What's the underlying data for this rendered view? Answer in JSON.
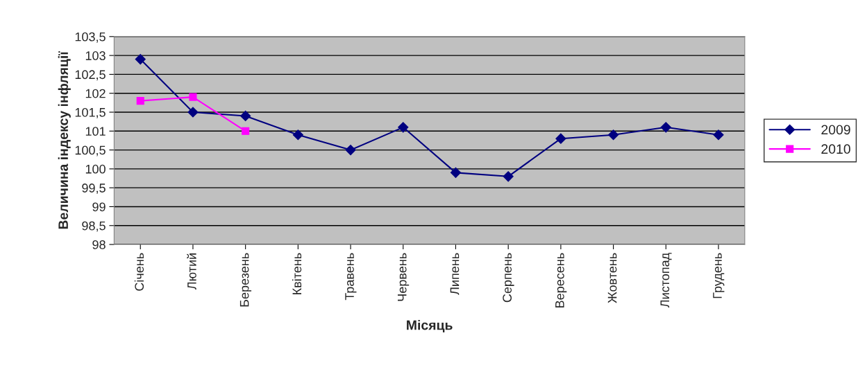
{
  "chart_data": {
    "type": "line",
    "xlabel": "Місяць",
    "ylabel": "Величина індексу інфляції",
    "categories": [
      "Січень",
      "Лютий",
      "Березень",
      "Квітень",
      "Травень",
      "Червень",
      "Липень",
      "Серпень",
      "Вересень",
      "Жовтень",
      "Листопад",
      "Грудень"
    ],
    "series": [
      {
        "name": "2009",
        "color": "#000080",
        "marker": "diamond",
        "values": [
          102.9,
          101.5,
          101.4,
          100.9,
          100.5,
          101.1,
          99.9,
          99.8,
          100.8,
          100.9,
          101.1,
          100.9
        ]
      },
      {
        "name": "2010",
        "color": "#ff00ff",
        "marker": "square",
        "values": [
          101.8,
          101.9,
          101.0,
          null,
          null,
          null,
          null,
          null,
          null,
          null,
          null,
          null
        ]
      }
    ],
    "ylim": [
      98,
      103.5
    ],
    "yticks": [
      98,
      {
        "value": 98.5,
        "label": "98,5"
      },
      99,
      {
        "value": 99.5,
        "label": "99,5"
      },
      100,
      {
        "value": 100.5,
        "label": "100,5"
      },
      101,
      {
        "value": 101.5,
        "label": "101,5"
      },
      102,
      {
        "value": 102.5,
        "label": "102,5"
      },
      103,
      {
        "value": 103.5,
        "label": "103,5"
      }
    ],
    "grid": "y",
    "legend": "right"
  }
}
